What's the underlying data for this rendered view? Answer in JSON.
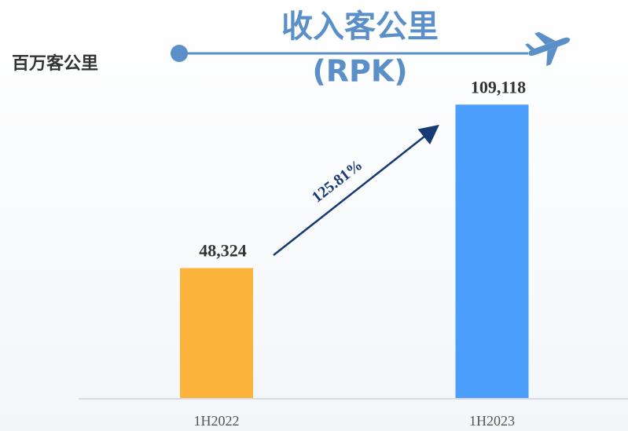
{
  "chart_data": {
    "type": "bar",
    "title": "收入客公里",
    "subtitle": "(RPK)",
    "y_label": "百万客公里",
    "categories": [
      "1H2022",
      "1H2023"
    ],
    "values": [
      48324,
      109118
    ],
    "value_labels": [
      "48,324",
      "109,118"
    ],
    "colors": [
      "#fbb33b",
      "#4b9efb"
    ],
    "ylim": [
      0,
      120000
    ],
    "annotation": "125.81%"
  }
}
